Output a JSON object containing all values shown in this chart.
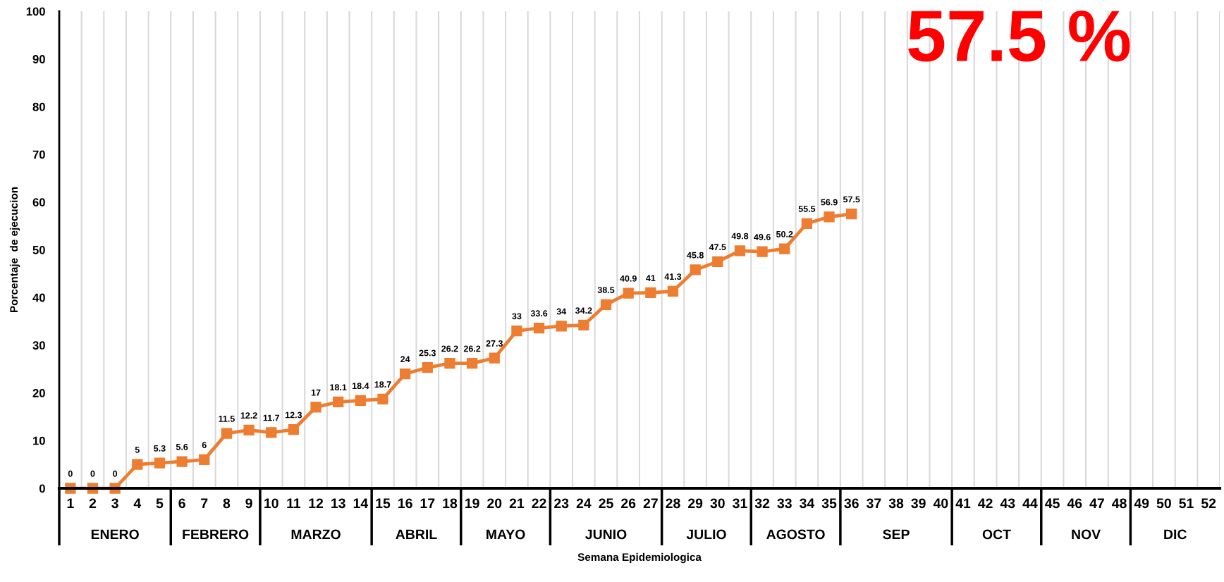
{
  "chart_data": {
    "type": "line",
    "categories": [
      "1",
      "2",
      "3",
      "4",
      "5",
      "6",
      "7",
      "8",
      "9",
      "10",
      "11",
      "12",
      "13",
      "14",
      "15",
      "16",
      "17",
      "18",
      "19",
      "20",
      "21",
      "22",
      "23",
      "24",
      "25",
      "26",
      "27",
      "28",
      "29",
      "30",
      "31",
      "32",
      "33",
      "34",
      "35",
      "36",
      "37",
      "38",
      "39",
      "40",
      "41",
      "42",
      "43",
      "44",
      "45",
      "46",
      "47",
      "48",
      "49",
      "50",
      "51",
      "52"
    ],
    "values": [
      0,
      0,
      0,
      5,
      5.3,
      5.6,
      6,
      11.5,
      12.2,
      11.7,
      12.3,
      17,
      18.1,
      18.4,
      18.7,
      24,
      25.3,
      26.2,
      26.2,
      27.3,
      33,
      33.6,
      34,
      34.2,
      38.5,
      40.9,
      41,
      41.3,
      45.8,
      47.5,
      49.8,
      49.6,
      50.2,
      55.5,
      56.9,
      57.5,
      null,
      null,
      null,
      null,
      null,
      null,
      null,
      null,
      null,
      null,
      null,
      null,
      null,
      null,
      null,
      null
    ],
    "color": "#ed7d31",
    "marker": "square",
    "line_style": "solid",
    "data_labels": true,
    "ylim": [
      0,
      100
    ],
    "yticks": [
      0,
      10,
      20,
      30,
      40,
      50,
      60,
      70,
      80,
      90,
      100
    ],
    "grid": "x",
    "xlabel": "Semana Epidemiologica",
    "ylabel": "Porcentaje  de ejecucion",
    "annotations": [
      "57.5 %",
      "ENERO",
      "FEBRERO",
      "MARZO",
      "ABRIL",
      "MAYO",
      "JUNIO",
      "JULIO",
      "AGOSTO",
      "SEP",
      "OCT",
      "NOV",
      "DIC"
    ]
  }
}
